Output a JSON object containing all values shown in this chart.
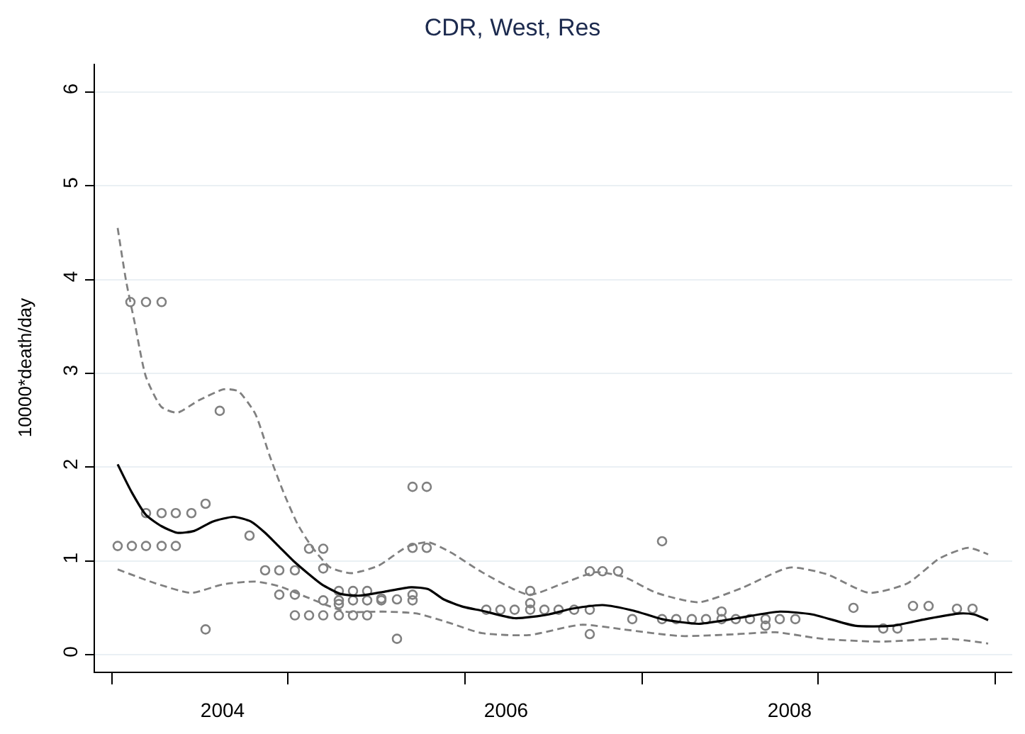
{
  "chart_data": {
    "type": "scatter",
    "title": "CDR, West, Res",
    "ylabel": "10000*death/day",
    "xlim": [
      2003.1,
      2009.57
    ],
    "ylim": [
      -0.18,
      6.3
    ],
    "xticks": [
      {
        "value": 2003.22,
        "label": null
      },
      2004,
      {
        "value": 2004.46,
        "label": null
      },
      {
        "value": 2005.71,
        "label": null
      },
      2006,
      {
        "value": 2006.96,
        "label": null
      },
      2008,
      {
        "value": 2008.2,
        "label": null
      },
      {
        "value": 2009.45,
        "label": null
      }
    ],
    "yticks": [
      0,
      1,
      2,
      3,
      4,
      5,
      6
    ],
    "grid": "y",
    "series": [
      {
        "marker": "circle",
        "color": "#808080",
        "x": [
          2003.26,
          2003.36,
          2003.46,
          2003.57,
          2003.67,
          2003.46,
          2003.57,
          2003.67,
          2003.78,
          2003.35,
          2003.46,
          2003.57,
          2003.88,
          2003.88,
          2003.98,
          2004.19,
          2004.3,
          2004.4,
          2004.51,
          2004.4,
          2004.51,
          2004.51,
          2004.61,
          2004.71,
          2004.82,
          2004.92,
          2005.02,
          2004.61,
          2004.71,
          2004.71,
          2004.71,
          2004.82,
          2004.82,
          2004.82,
          2004.92,
          2004.92,
          2005.02,
          2005.02,
          2005.12,
          2005.12,
          2005.23,
          2005.23,
          2005.34,
          2005.34,
          2005.34,
          2005.34,
          2005.44,
          2005.44,
          2005.86,
          2005.96,
          2006.06,
          2006.17,
          2006.27,
          2006.37,
          2006.48,
          2006.59,
          2006.17,
          2006.17,
          2006.59,
          2006.59,
          2006.68,
          2006.79,
          2006.89,
          2007.1,
          2007.1,
          2007.2,
          2007.31,
          2007.41,
          2007.52,
          2007.62,
          2007.72,
          2007.93,
          2008.04,
          2007.52,
          2007.83,
          2007.83,
          2008.45,
          2008.66,
          2008.76,
          2008.87,
          2008.98,
          2009.18,
          2009.29
        ],
        "values": [
          1.16,
          1.16,
          1.16,
          1.16,
          1.16,
          1.51,
          1.51,
          1.51,
          1.51,
          3.76,
          3.76,
          3.76,
          1.61,
          0.27,
          2.6,
          1.27,
          0.9,
          0.9,
          0.9,
          0.64,
          0.64,
          0.42,
          0.42,
          0.42,
          0.42,
          0.42,
          0.42,
          1.13,
          1.13,
          0.92,
          0.58,
          0.68,
          0.58,
          0.54,
          0.68,
          0.58,
          0.68,
          0.58,
          0.6,
          0.58,
          0.59,
          0.17,
          0.64,
          0.58,
          1.79,
          1.14,
          1.79,
          1.14,
          0.48,
          0.48,
          0.48,
          0.48,
          0.48,
          0.48,
          0.48,
          0.48,
          0.68,
          0.55,
          0.89,
          0.22,
          0.89,
          0.89,
          0.38,
          1.21,
          0.38,
          0.38,
          0.38,
          0.38,
          0.38,
          0.38,
          0.38,
          0.38,
          0.38,
          0.46,
          0.38,
          0.31,
          0.5,
          0.28,
          0.28,
          0.52,
          0.52,
          0.49,
          0.49
        ]
      },
      {
        "type": "line",
        "line_style": "solid",
        "color": "#000000",
        "x": [
          2003.26,
          2003.36,
          2003.46,
          2003.57,
          2003.68,
          2003.8,
          2003.93,
          2004.08,
          2004.2,
          2004.3,
          2004.4,
          2004.5,
          2004.6,
          2004.7,
          2004.83,
          2004.96,
          2005.13,
          2005.33,
          2005.45,
          2005.56,
          2005.7,
          2005.83,
          2006.06,
          2006.3,
          2006.46,
          2006.68,
          2006.9,
          2007.1,
          2007.36,
          2007.63,
          2007.93,
          2008.16,
          2008.46,
          2008.73,
          2008.96,
          2009.2,
          2009.3,
          2009.4
        ],
        "values": [
          2.03,
          1.73,
          1.49,
          1.37,
          1.3,
          1.32,
          1.42,
          1.47,
          1.42,
          1.3,
          1.15,
          1.0,
          0.87,
          0.75,
          0.65,
          0.63,
          0.67,
          0.72,
          0.7,
          0.59,
          0.51,
          0.47,
          0.39,
          0.43,
          0.49,
          0.53,
          0.47,
          0.38,
          0.33,
          0.39,
          0.46,
          0.43,
          0.31,
          0.31,
          0.38,
          0.44,
          0.43,
          0.37
        ]
      },
      {
        "type": "line",
        "line_style": "dashed",
        "color": "#808080",
        "x": [
          2003.26,
          2003.32,
          2003.38,
          2003.46,
          2003.57,
          2003.68,
          2003.83,
          2004.01,
          2004.11,
          2004.23,
          2004.33,
          2004.43,
          2004.53,
          2004.63,
          2004.76,
          2004.91,
          2005.1,
          2005.3,
          2005.45,
          2005.6,
          2005.83,
          2006.16,
          2006.4,
          2006.63,
          2006.83,
          2007.06,
          2007.36,
          2007.66,
          2008.0,
          2008.26,
          2008.56,
          2008.83,
          2009.06,
          2009.26,
          2009.4
        ],
        "values": [
          4.55,
          3.98,
          3.54,
          2.96,
          2.64,
          2.58,
          2.71,
          2.83,
          2.81,
          2.57,
          2.13,
          1.73,
          1.39,
          1.15,
          0.93,
          0.87,
          0.95,
          1.15,
          1.2,
          1.1,
          0.88,
          0.64,
          0.76,
          0.88,
          0.83,
          0.66,
          0.56,
          0.71,
          0.93,
          0.86,
          0.66,
          0.76,
          1.03,
          1.14,
          1.07
        ]
      },
      {
        "type": "line",
        "line_style": "dashed",
        "color": "#808080",
        "x": [
          2003.26,
          2003.53,
          2003.78,
          2004.0,
          2004.23,
          2004.4,
          2004.6,
          2004.87,
          2005.13,
          2005.37,
          2005.6,
          2005.83,
          2006.16,
          2006.53,
          2006.83,
          2007.23,
          2007.63,
          2007.9,
          2008.23,
          2008.63,
          2009.13,
          2009.4
        ],
        "values": [
          0.91,
          0.76,
          0.66,
          0.75,
          0.78,
          0.73,
          0.61,
          0.46,
          0.46,
          0.44,
          0.34,
          0.23,
          0.21,
          0.32,
          0.27,
          0.2,
          0.22,
          0.24,
          0.17,
          0.14,
          0.17,
          0.12
        ]
      }
    ]
  }
}
